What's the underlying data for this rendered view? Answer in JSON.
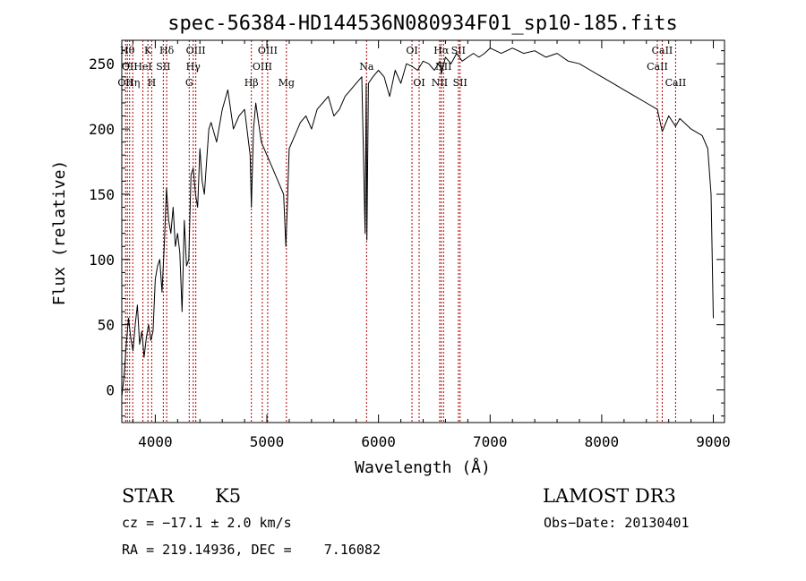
{
  "chart_data": {
    "type": "line",
    "title": "spec-56384-HD144536N080934F01_sp10-185.fits",
    "xlabel": "Wavelength (Å)",
    "ylabel": "Flux (relative)",
    "xlim": [
      3700,
      9100
    ],
    "ylim": [
      -25,
      268
    ],
    "xticks": [
      4000,
      5000,
      6000,
      7000,
      8000,
      9000
    ],
    "yticks": [
      0,
      50,
      100,
      150,
      200,
      250
    ],
    "series": [
      {
        "name": "spectrum",
        "x": [
          3700,
          3720,
          3740,
          3760,
          3780,
          3800,
          3820,
          3840,
          3860,
          3880,
          3900,
          3920,
          3940,
          3960,
          3980,
          4000,
          4020,
          4040,
          4060,
          4080,
          4100,
          4120,
          4140,
          4160,
          4180,
          4200,
          4220,
          4240,
          4260,
          4280,
          4300,
          4320,
          4340,
          4360,
          4380,
          4400,
          4420,
          4440,
          4460,
          4480,
          4500,
          4550,
          4600,
          4650,
          4700,
          4750,
          4800,
          4850,
          4861,
          4880,
          4900,
          4950,
          5000,
          5050,
          5100,
          5150,
          5170,
          5183,
          5200,
          5250,
          5300,
          5350,
          5400,
          5450,
          5500,
          5550,
          5600,
          5650,
          5700,
          5750,
          5800,
          5850,
          5880,
          5890,
          5896,
          5910,
          5950,
          6000,
          6050,
          6100,
          6150,
          6200,
          6250,
          6300,
          6350,
          6400,
          6450,
          6500,
          6550,
          6563,
          6600,
          6650,
          6700,
          6750,
          6800,
          6850,
          6900,
          6950,
          7000,
          7100,
          7200,
          7300,
          7400,
          7500,
          7600,
          7700,
          7800,
          7900,
          8000,
          8100,
          8200,
          8300,
          8400,
          8498,
          8542,
          8600,
          8662,
          8700,
          8800,
          8900,
          8950,
          8980,
          9000
        ],
        "y": [
          -5,
          10,
          35,
          55,
          40,
          30,
          50,
          65,
          35,
          45,
          25,
          40,
          50,
          38,
          45,
          85,
          95,
          100,
          75,
          110,
          155,
          130,
          120,
          140,
          110,
          120,
          105,
          60,
          130,
          95,
          100,
          165,
          170,
          150,
          140,
          185,
          160,
          150,
          175,
          200,
          205,
          190,
          215,
          230,
          200,
          210,
          215,
          180,
          140,
          200,
          220,
          190,
          180,
          170,
          160,
          150,
          110,
          140,
          185,
          195,
          205,
          210,
          200,
          215,
          220,
          225,
          210,
          215,
          225,
          230,
          235,
          240,
          120,
          235,
          115,
          235,
          240,
          245,
          240,
          225,
          245,
          235,
          250,
          248,
          245,
          252,
          250,
          245,
          252,
          242,
          255,
          250,
          258,
          252,
          255,
          258,
          255,
          258,
          262,
          258,
          262,
          258,
          260,
          255,
          258,
          252,
          250,
          245,
          240,
          235,
          230,
          225,
          220,
          215,
          198,
          210,
          202,
          208,
          200,
          195,
          185,
          150,
          55
        ]
      }
    ],
    "lines": [
      {
        "x": 3734,
        "label": "OII",
        "row": 2
      },
      {
        "x": 3750,
        "label": "Hθ",
        "row": 0
      },
      {
        "x": 3770,
        "label": "OII",
        "row": 1
      },
      {
        "x": 3798,
        "label": "Hη",
        "row": 2
      },
      {
        "x": 3889,
        "label": "HeI",
        "row": 1
      },
      {
        "x": 3934,
        "label": "K",
        "row": 0
      },
      {
        "x": 3968,
        "label": "H",
        "row": 2
      },
      {
        "x": 4072,
        "label": "SII",
        "row": 1
      },
      {
        "x": 4102,
        "label": "Hδ",
        "row": 0
      },
      {
        "x": 4304,
        "label": "G",
        "row": 2
      },
      {
        "x": 4340,
        "label": "Hγ",
        "row": 1
      },
      {
        "x": 4363,
        "label": "OIII",
        "row": 0
      },
      {
        "x": 4861,
        "label": "Hβ",
        "row": 2
      },
      {
        "x": 4959,
        "label": "OIII",
        "row": 1
      },
      {
        "x": 5007,
        "label": "OIII",
        "row": 0
      },
      {
        "x": 5175,
        "label": "Mg",
        "row": 2
      },
      {
        "x": 5893,
        "label": "Na",
        "row": 1
      },
      {
        "x": 6300,
        "label": "OI",
        "row": 0
      },
      {
        "x": 6364,
        "label": "OI",
        "row": 2
      },
      {
        "x": 6548,
        "label": "NII",
        "row": 2
      },
      {
        "x": 6563,
        "label": "Hα",
        "row": 0
      },
      {
        "x": 6583,
        "label": "NII",
        "row": 1
      },
      {
        "x": 6716,
        "label": "SII",
        "row": 0
      },
      {
        "x": 6731,
        "label": "SII",
        "row": 2
      },
      {
        "x": 8498,
        "label": "CaII",
        "row": 1
      },
      {
        "x": 8542,
        "label": "CaII",
        "row": 0
      },
      {
        "x": 8662,
        "label": "CaII",
        "row": 2
      }
    ]
  },
  "info": {
    "class": "STAR",
    "subclass": "K5",
    "survey": "LAMOST DR3",
    "cz": "cz = −17.1 ± 2.0 km/s",
    "obs_date": "Obs−Date: 20130401",
    "radec": "RA = 219.14936, DEC =    7.16082"
  }
}
